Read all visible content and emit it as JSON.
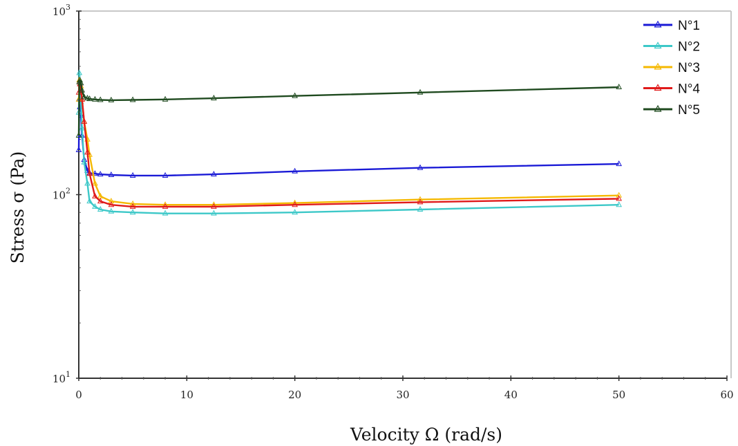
{
  "chart_data": {
    "type": "line",
    "xlabel": "Velocity Ω (rad/s)",
    "ylabel": "Stress σ (Pa)",
    "xlim": [
      0,
      60
    ],
    "ylim": [
      10,
      1000
    ],
    "y_scale": "log",
    "x_ticks": [
      0,
      10,
      20,
      30,
      40,
      50,
      60
    ],
    "y_ticks": [
      {
        "base": "10",
        "exp": "1",
        "value": 10
      },
      {
        "base": "10",
        "exp": "2",
        "value": 100
      },
      {
        "base": "10",
        "exp": "3",
        "value": 1000
      }
    ],
    "grid": false,
    "legend_position": "top-right",
    "marker": "triangle",
    "series": [
      {
        "name": "N°1",
        "color": "#1a1ad6",
        "x": [
          0,
          0.05,
          0.1,
          0.2,
          0.3,
          0.5,
          0.8,
          1.0,
          1.5,
          2.0,
          3.0,
          5.0,
          8.0,
          12.5,
          20.0,
          31.6,
          50.0
        ],
        "y": [
          175,
          330,
          300,
          270,
          210,
          155,
          135,
          131,
          130,
          129,
          128,
          127,
          127,
          129,
          134,
          140,
          147
        ]
      },
      {
        "name": "N°2",
        "color": "#3cc8c8",
        "x": [
          0,
          0.05,
          0.1,
          0.2,
          0.3,
          0.5,
          0.8,
          1.0,
          1.5,
          2.0,
          3.0,
          5.0,
          8.0,
          12.5,
          20.0,
          31.6,
          50.0
        ],
        "y": [
          280,
          460,
          420,
          320,
          230,
          150,
          115,
          92,
          86,
          83,
          81,
          80,
          79,
          79,
          80,
          83,
          88
        ]
      },
      {
        "name": "N°3",
        "color": "#f5b800",
        "x": [
          0,
          0.05,
          0.1,
          0.2,
          0.3,
          0.5,
          0.8,
          1.0,
          1.5,
          2.0,
          3.0,
          5.0,
          8.0,
          12.5,
          20.0,
          31.6,
          50.0
        ],
        "y": [
          330,
          420,
          420,
          390,
          330,
          250,
          200,
          165,
          115,
          98,
          92,
          89,
          88,
          88,
          90,
          94,
          99
        ]
      },
      {
        "name": "N°4",
        "color": "#e01a1a",
        "x": [
          0,
          0.05,
          0.1,
          0.2,
          0.3,
          0.5,
          0.8,
          1.0,
          1.5,
          2.0,
          3.0,
          5.0,
          8.0,
          12.5,
          20.0,
          31.6,
          50.0
        ],
        "y": [
          360,
          410,
          400,
          370,
          330,
          250,
          170,
          130,
          98,
          92,
          88,
          86,
          86,
          86,
          88,
          91,
          95
        ]
      },
      {
        "name": "N°5",
        "color": "#1f4a1f",
        "x": [
          0,
          0.05,
          0.1,
          0.2,
          0.3,
          0.5,
          0.8,
          1.0,
          1.5,
          2.0,
          3.0,
          5.0,
          8.0,
          12.5,
          20.0,
          31.6,
          50.0
        ],
        "y": [
          210,
          410,
          420,
          405,
          370,
          340,
          335,
          332,
          330,
          328,
          327,
          328,
          330,
          335,
          345,
          360,
          385
        ]
      }
    ]
  }
}
